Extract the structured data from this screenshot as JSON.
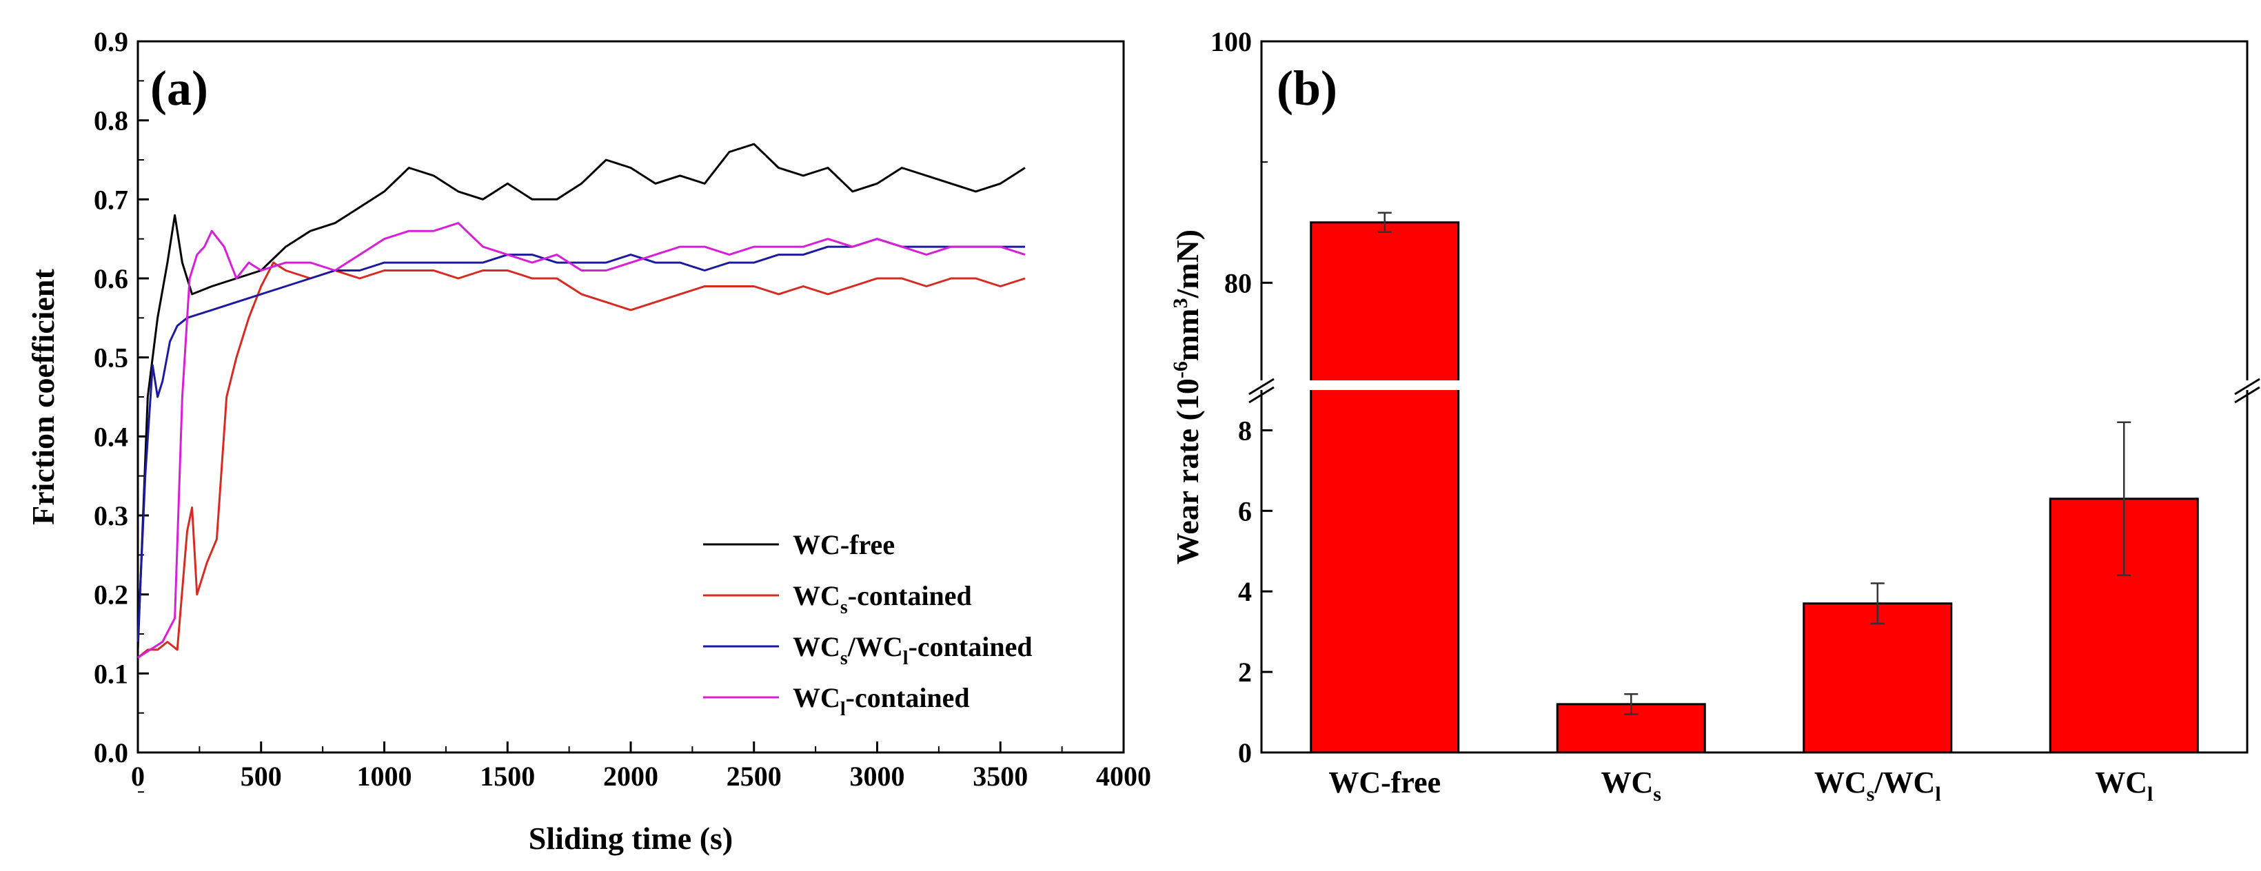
{
  "chart_data": [
    {
      "panel": "(a)",
      "type": "line",
      "title": "",
      "xlabel": "Sliding time (s)",
      "ylabel": "Friction coefficient",
      "xlim": [
        0,
        4000
      ],
      "ylim": [
        0,
        0.9
      ],
      "xticks": [
        "0",
        "500",
        "1000",
        "1500",
        "2000",
        "2500",
        "3000",
        "3500",
        "4000"
      ],
      "yticks": [
        "0.0",
        "0.1",
        "0.2",
        "0.3",
        "0.4",
        "0.5",
        "0.6",
        "0.7",
        "0.8",
        "0.9"
      ],
      "legend_position": "lower-right",
      "series": [
        {
          "name": "WC-free",
          "base": "WC-free",
          "sub": "",
          "mid": "",
          "sub2": "",
          "tail": "",
          "color": "#000000",
          "x": [
            0,
            40,
            80,
            120,
            150,
            180,
            220,
            300,
            400,
            500,
            600,
            700,
            800,
            900,
            1000,
            1100,
            1200,
            1300,
            1400,
            1500,
            1600,
            1700,
            1800,
            1900,
            2000,
            2100,
            2200,
            2300,
            2400,
            2500,
            2600,
            2700,
            2800,
            2900,
            3000,
            3100,
            3200,
            3300,
            3400,
            3500,
            3600
          ],
          "y": [
            0.13,
            0.45,
            0.55,
            0.62,
            0.68,
            0.62,
            0.58,
            0.59,
            0.6,
            0.61,
            0.64,
            0.66,
            0.67,
            0.69,
            0.71,
            0.74,
            0.73,
            0.71,
            0.7,
            0.72,
            0.7,
            0.7,
            0.72,
            0.75,
            0.74,
            0.72,
            0.73,
            0.72,
            0.76,
            0.77,
            0.74,
            0.73,
            0.74,
            0.71,
            0.72,
            0.74,
            0.73,
            0.72,
            0.71,
            0.72,
            0.74
          ]
        },
        {
          "name": "WCs-contained",
          "base": "WC",
          "sub": "s",
          "mid": "-contained",
          "sub2": "",
          "tail": "",
          "color": "#d62b22",
          "x": [
            0,
            40,
            80,
            120,
            160,
            200,
            220,
            240,
            280,
            320,
            360,
            400,
            450,
            500,
            550,
            600,
            700,
            800,
            900,
            1000,
            1100,
            1200,
            1300,
            1400,
            1500,
            1600,
            1700,
            1800,
            1900,
            2000,
            2100,
            2200,
            2300,
            2400,
            2500,
            2600,
            2700,
            2800,
            2900,
            3000,
            3100,
            3200,
            3300,
            3400,
            3500,
            3600
          ],
          "y": [
            0.12,
            0.13,
            0.13,
            0.14,
            0.13,
            0.28,
            0.31,
            0.2,
            0.24,
            0.27,
            0.45,
            0.5,
            0.55,
            0.59,
            0.62,
            0.61,
            0.6,
            0.61,
            0.6,
            0.61,
            0.61,
            0.61,
            0.6,
            0.61,
            0.61,
            0.6,
            0.6,
            0.58,
            0.57,
            0.56,
            0.57,
            0.58,
            0.59,
            0.59,
            0.59,
            0.58,
            0.59,
            0.58,
            0.59,
            0.6,
            0.6,
            0.59,
            0.6,
            0.6,
            0.59,
            0.6
          ]
        },
        {
          "name": "WCs/WCl-contained",
          "base": "WC",
          "sub": "s",
          "mid": "/WC",
          "sub2": "l",
          "tail": "-contained",
          "color": "#1d1a9e",
          "x": [
            0,
            30,
            60,
            80,
            100,
            130,
            160,
            200,
            300,
            400,
            500,
            600,
            700,
            800,
            900,
            1000,
            1100,
            1200,
            1300,
            1400,
            1500,
            1600,
            1700,
            1800,
            1900,
            2000,
            2100,
            2200,
            2300,
            2400,
            2500,
            2600,
            2700,
            2800,
            2900,
            3000,
            3100,
            3200,
            3300,
            3400,
            3500,
            3600
          ],
          "y": [
            0.14,
            0.35,
            0.49,
            0.45,
            0.47,
            0.52,
            0.54,
            0.55,
            0.56,
            0.57,
            0.58,
            0.59,
            0.6,
            0.61,
            0.61,
            0.62,
            0.62,
            0.62,
            0.62,
            0.62,
            0.63,
            0.63,
            0.62,
            0.62,
            0.62,
            0.63,
            0.62,
            0.62,
            0.61,
            0.62,
            0.62,
            0.63,
            0.63,
            0.64,
            0.64,
            0.65,
            0.64,
            0.64,
            0.64,
            0.64,
            0.64,
            0.64
          ]
        },
        {
          "name": "WCl-contained",
          "base": "WC",
          "sub": "l",
          "mid": "-contained",
          "sub2": "",
          "tail": "",
          "color": "#d81fd8",
          "x": [
            0,
            50,
            100,
            150,
            180,
            210,
            240,
            270,
            300,
            350,
            400,
            450,
            500,
            600,
            700,
            800,
            900,
            1000,
            1100,
            1200,
            1300,
            1400,
            1500,
            1600,
            1700,
            1800,
            1900,
            2000,
            2100,
            2200,
            2300,
            2400,
            2500,
            2600,
            2700,
            2800,
            2900,
            3000,
            3100,
            3200,
            3300,
            3400,
            3500,
            3600
          ],
          "y": [
            0.12,
            0.13,
            0.14,
            0.17,
            0.45,
            0.6,
            0.63,
            0.64,
            0.66,
            0.64,
            0.6,
            0.62,
            0.61,
            0.62,
            0.62,
            0.61,
            0.63,
            0.65,
            0.66,
            0.66,
            0.67,
            0.64,
            0.63,
            0.62,
            0.63,
            0.61,
            0.61,
            0.62,
            0.63,
            0.64,
            0.64,
            0.63,
            0.64,
            0.64,
            0.64,
            0.65,
            0.64,
            0.65,
            0.64,
            0.63,
            0.64,
            0.64,
            0.64,
            0.63
          ]
        }
      ]
    },
    {
      "panel": "(b)",
      "type": "bar",
      "title": "",
      "xlabel": "",
      "ylabel": "Wear rate (10",
      "ylabel_exp": "-6",
      "ylabel_mid": "mm",
      "ylabel_exp2": "3",
      "ylabel_tail": "/mN)",
      "categories": [
        {
          "base": "WC-free",
          "sub": "",
          "mid": "",
          "sub2": ""
        },
        {
          "base": "WC",
          "sub": "s",
          "mid": "",
          "sub2": ""
        },
        {
          "base": "WC",
          "sub": "s",
          "mid": "/WC",
          "sub2": "l"
        },
        {
          "base": "WC",
          "sub": "l",
          "mid": "",
          "sub2": ""
        }
      ],
      "values": [
        85,
        1.2,
        3.7,
        6.3
      ],
      "errors": [
        0.8,
        0.25,
        0.5,
        1.9
      ],
      "bar_color": "#ff0000",
      "y_axis_break": true,
      "ylim_lower": [
        0,
        9
      ],
      "ylim_upper": [
        71,
        100
      ],
      "yticks_lower": [
        "0",
        "2",
        "4",
        "6",
        "8"
      ],
      "yticks_upper": [
        "80",
        "100"
      ]
    }
  ]
}
